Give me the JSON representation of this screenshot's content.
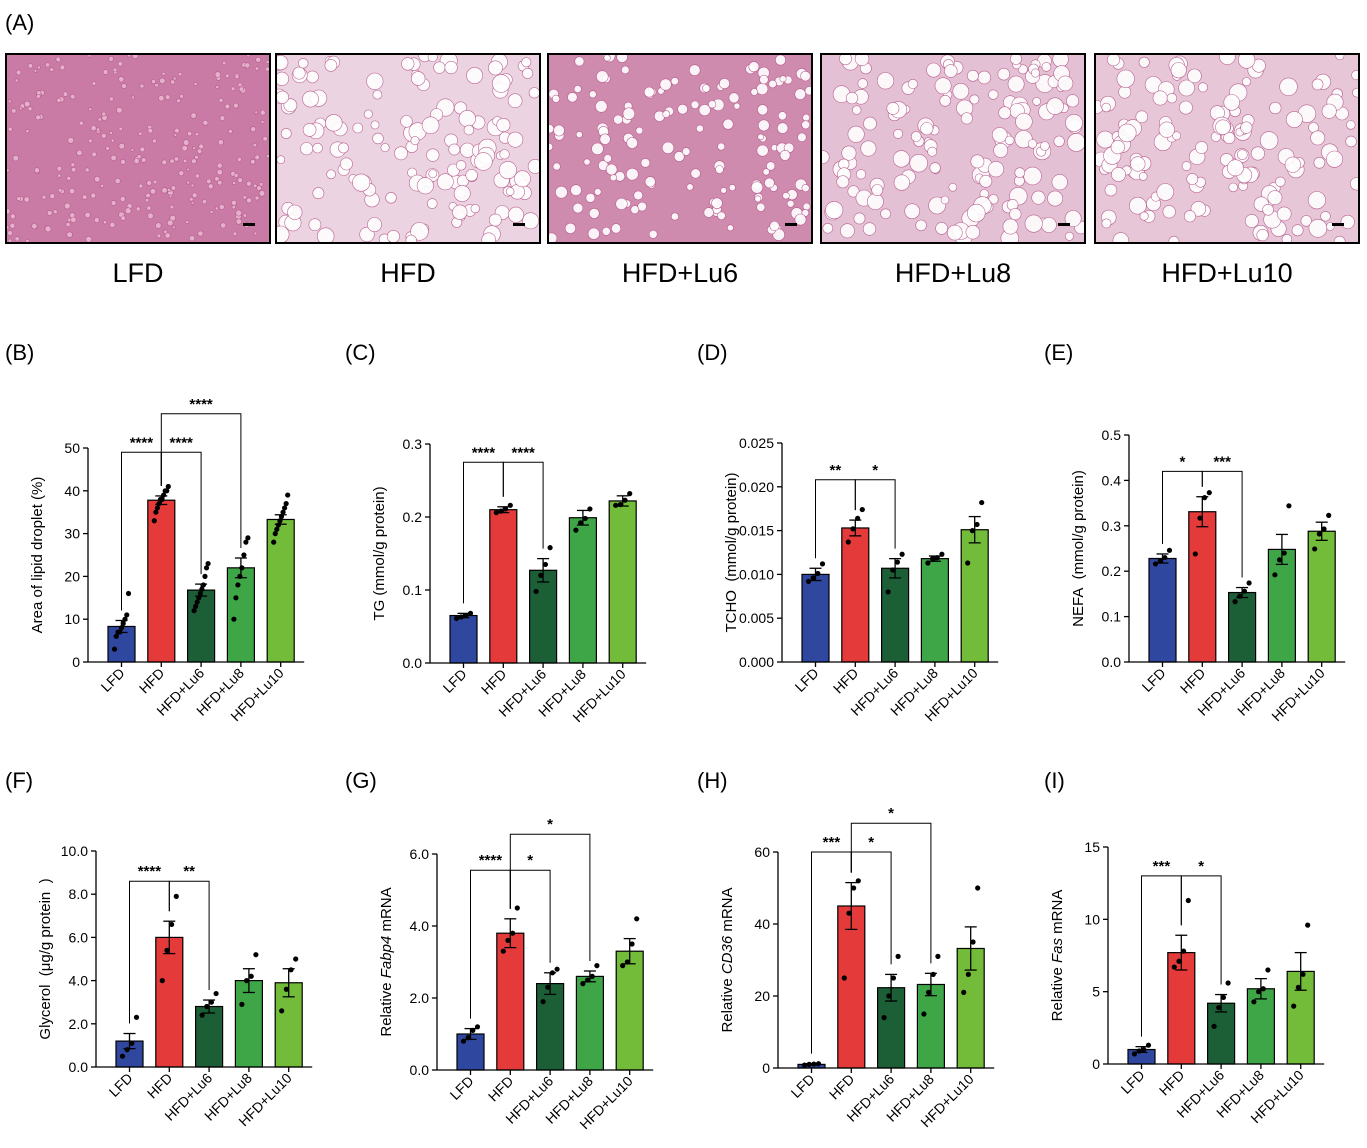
{
  "panel_A": {
    "label": "(A)",
    "images": [
      {
        "group": "LFD",
        "tint": "#c97aa5",
        "cells": "small"
      },
      {
        "group": "HFD",
        "tint": "#ecd3e1",
        "cells": "large"
      },
      {
        "group": "HFD+Lu6",
        "tint": "#cf8bae",
        "cells": "medium"
      },
      {
        "group": "HFD+Lu8",
        "tint": "#e4c0d4",
        "cells": "large"
      },
      {
        "group": "HFD+Lu10",
        "tint": "#e7c6d8",
        "cells": "large"
      }
    ]
  },
  "colors": {
    "LFD": "#3047a0",
    "HFD": "#e53a3a",
    "HFD+Lu6": "#1c5e36",
    "HFD+Lu8": "#3fa648",
    "HFD+Lu10": "#72bc3a"
  },
  "chart_data": [
    {
      "panel": "(B)",
      "type": "bar",
      "categories": [
        "LFD",
        "HFD",
        "HFD+Lu6",
        "HFD+Lu8",
        "HFD+Lu10"
      ],
      "values": [
        8.3,
        37.8,
        16.8,
        22.0,
        33.3
      ],
      "errors": [
        1.4,
        1.0,
        1.4,
        2.3,
        1.1
      ],
      "points": [
        [
          3,
          6,
          7,
          7,
          8,
          9,
          10,
          11,
          16
        ],
        [
          33,
          35,
          36,
          37,
          38,
          38,
          39,
          40,
          40,
          41
        ],
        [
          12,
          13,
          14,
          15,
          16,
          17,
          18,
          20,
          22,
          23
        ],
        [
          10,
          15,
          18,
          20,
          22,
          25,
          28,
          29
        ],
        [
          28,
          30,
          31,
          32,
          33,
          34,
          35,
          36,
          37,
          39
        ]
      ],
      "ylabel": "Area of lipid droplet (%)",
      "ylim": [
        0,
        50
      ],
      "yticks": [
        "0",
        "10",
        "20",
        "30",
        "40",
        "50"
      ],
      "sig": [
        {
          "from": 0,
          "to": 1,
          "label": "****",
          "level": 49
        },
        {
          "from": 1,
          "to": 2,
          "label": "****",
          "level": 49
        },
        {
          "from": 1,
          "to": 3,
          "label": "****",
          "level": 58
        }
      ]
    },
    {
      "panel": "(C)",
      "type": "bar",
      "categories": [
        "LFD",
        "HFD",
        "HFD+Lu6",
        "HFD+Lu8",
        "HFD+Lu10"
      ],
      "values": [
        0.065,
        0.21,
        0.127,
        0.199,
        0.222
      ],
      "errors": [
        0.003,
        0.004,
        0.016,
        0.01,
        0.007
      ],
      "points": [
        [
          0.061,
          0.063,
          0.065,
          0.068
        ],
        [
          0.206,
          0.208,
          0.211,
          0.216
        ],
        [
          0.098,
          0.12,
          0.135,
          0.158
        ],
        [
          0.182,
          0.192,
          0.198,
          0.211
        ],
        [
          0.216,
          0.217,
          0.223,
          0.232
        ]
      ],
      "ylabel": "TG (mmol/g protein)",
      "ylim": [
        0,
        0.3
      ],
      "yticks": [
        "0.0",
        "0.1",
        "0.2",
        "0.3"
      ],
      "sig": [
        {
          "from": 0,
          "to": 1,
          "label": "****",
          "level": 0.275
        },
        {
          "from": 1,
          "to": 2,
          "label": "****",
          "level": 0.275
        }
      ]
    },
    {
      "panel": "(D)",
      "type": "bar",
      "categories": [
        "LFD",
        "HFD",
        "HFD+Lu6",
        "HFD+Lu8",
        "HFD+Lu10"
      ],
      "values": [
        0.01,
        0.0153,
        0.0107,
        0.0118,
        0.0151
      ],
      "errors": [
        0.0007,
        0.0009,
        0.0011,
        0.0003,
        0.0015
      ],
      "points": [
        [
          0.0092,
          0.0096,
          0.0101,
          0.0112
        ],
        [
          0.0137,
          0.0152,
          0.0164,
          0.0174
        ],
        [
          0.008,
          0.0105,
          0.0114,
          0.0123
        ],
        [
          0.0113,
          0.0118,
          0.0119,
          0.0123
        ],
        [
          0.0113,
          0.015,
          0.0157,
          0.0182
        ]
      ],
      "ylabel": "TCHO  (mmol/g protein)",
      "ylim": [
        0,
        0.025
      ],
      "yticks": [
        "0.000",
        "0.005",
        "0.010",
        "0.015",
        "0.020",
        "0.025"
      ],
      "sig": [
        {
          "from": 0,
          "to": 1,
          "label": "**",
          "level": 0.0208
        },
        {
          "from": 1,
          "to": 2,
          "label": "*",
          "level": 0.0208
        }
      ]
    },
    {
      "panel": "(E)",
      "type": "bar",
      "categories": [
        "LFD",
        "HFD",
        "HFD+Lu6",
        "HFD+Lu8",
        "HFD+Lu10"
      ],
      "values": [
        0.228,
        0.331,
        0.153,
        0.248,
        0.288
      ],
      "errors": [
        0.01,
        0.033,
        0.011,
        0.033,
        0.02
      ],
      "points": [
        [
          0.216,
          0.222,
          0.23,
          0.246
        ],
        [
          0.238,
          0.317,
          0.362,
          0.373
        ],
        [
          0.133,
          0.145,
          0.156,
          0.174
        ],
        [
          0.192,
          0.225,
          0.24,
          0.344
        ],
        [
          0.249,
          0.282,
          0.293,
          0.323
        ]
      ],
      "ylabel": "NEFA  (mmol/g protein)",
      "ylim": [
        0,
        0.5
      ],
      "yticks": [
        "0.0",
        "0.1",
        "0.2",
        "0.3",
        "0.4",
        "0.5"
      ],
      "sig": [
        {
          "from": 0,
          "to": 1,
          "label": "*",
          "level": 0.42
        },
        {
          "from": 1,
          "to": 2,
          "label": "***",
          "level": 0.42
        }
      ]
    },
    {
      "panel": "(F)",
      "type": "bar",
      "categories": [
        "LFD",
        "HFD",
        "HFD+Lu6",
        "HFD+Lu8",
        "HFD+Lu10"
      ],
      "values": [
        1.2,
        6.0,
        2.8,
        4.0,
        3.9
      ],
      "errors": [
        0.35,
        0.75,
        0.3,
        0.55,
        0.65
      ],
      "points": [
        [
          0.5,
          0.8,
          1.1,
          2.3
        ],
        [
          4.0,
          5.4,
          6.6,
          7.9
        ],
        [
          2.4,
          2.8,
          3.0,
          3.4
        ],
        [
          2.9,
          4.0,
          4.2,
          5.2
        ],
        [
          2.6,
          3.6,
          4.5,
          5.0
        ]
      ],
      "ylabel": "Glycerol  (μg/g protein  )",
      "ylim": [
        0,
        10
      ],
      "yticks": [
        "0.0",
        "2.0",
        "4.0",
        "6.0",
        "8.0",
        "10.0"
      ],
      "sig": [
        {
          "from": 0,
          "to": 1,
          "label": "****",
          "level": 8.6
        },
        {
          "from": 1,
          "to": 2,
          "label": "**",
          "level": 8.6
        }
      ]
    },
    {
      "panel": "(G)",
      "type": "bar",
      "categories": [
        "LFD",
        "HFD",
        "HFD+Lu6",
        "HFD+Lu8",
        "HFD+Lu10"
      ],
      "values": [
        1.0,
        3.8,
        2.4,
        2.6,
        3.3
      ],
      "errors": [
        0.15,
        0.4,
        0.3,
        0.15,
        0.35
      ],
      "points": [
        [
          0.8,
          0.9,
          1.1,
          1.2
        ],
        [
          3.3,
          3.6,
          3.8,
          4.5
        ],
        [
          1.9,
          2.3,
          2.7,
          2.8
        ],
        [
          2.4,
          2.5,
          2.6,
          2.9
        ],
        [
          2.9,
          3.0,
          3.5,
          4.2
        ]
      ],
      "ylabel": "Relative ",
      "ylabel_italic": "Fabp4",
      "ylabel_after": " mRNA",
      "ylim": [
        0,
        6
      ],
      "yticks": [
        "0.0",
        "2.0",
        "4.0",
        "6.0"
      ],
      "sig": [
        {
          "from": 0,
          "to": 1,
          "label": "****",
          "level": 5.55
        },
        {
          "from": 1,
          "to": 2,
          "label": "*",
          "level": 5.55
        },
        {
          "from": 1,
          "to": 3,
          "label": "*",
          "level": 6.55
        }
      ]
    },
    {
      "panel": "(H)",
      "type": "bar",
      "categories": [
        "LFD",
        "HFD",
        "HFD+Lu6",
        "HFD+Lu8",
        "HFD+Lu10"
      ],
      "values": [
        1.0,
        45.0,
        22.3,
        23.2,
        33.2
      ],
      "errors": [
        0.2,
        6.5,
        3.7,
        3.1,
        6.0
      ],
      "points": [
        [
          0.8,
          1.0,
          1.1,
          1.2
        ],
        [
          25,
          43,
          50,
          52
        ],
        [
          14,
          20,
          25,
          31
        ],
        [
          15,
          21,
          26,
          31
        ],
        [
          21,
          26,
          35,
          50
        ]
      ],
      "ylabel": "Relative ",
      "ylabel_italic": "CD36",
      "ylabel_after": " mRNA",
      "ylim": [
        0,
        60
      ],
      "yticks": [
        "0",
        "20",
        "40",
        "60"
      ],
      "sig": [
        {
          "from": 0,
          "to": 1,
          "label": "***",
          "level": 60
        },
        {
          "from": 1,
          "to": 2,
          "label": "*",
          "level": 60
        },
        {
          "from": 1,
          "to": 3,
          "label": "*",
          "level": 68
        }
      ]
    },
    {
      "panel": "(I)",
      "type": "bar",
      "categories": [
        "LFD",
        "HFD",
        "HFD+Lu6",
        "HFD+Lu8",
        "HFD+Lu10"
      ],
      "values": [
        1.0,
        7.7,
        4.2,
        5.2,
        6.4
      ],
      "errors": [
        0.2,
        1.2,
        0.6,
        0.7,
        1.3
      ],
      "points": [
        [
          0.7,
          0.9,
          1.0,
          1.3
        ],
        [
          6.7,
          7.1,
          7.8,
          11.3
        ],
        [
          2.6,
          3.9,
          4.6,
          5.6
        ],
        [
          4.3,
          5.0,
          5.2,
          6.5
        ],
        [
          4.0,
          5.3,
          6.2,
          9.6
        ]
      ],
      "ylabel": "Relative ",
      "ylabel_italic": "Fas",
      "ylabel_after": " mRNA",
      "ylim": [
        0,
        15
      ],
      "yticks": [
        "0",
        "5",
        "10",
        "15"
      ],
      "sig": [
        {
          "from": 0,
          "to": 1,
          "label": "***",
          "level": 13.0
        },
        {
          "from": 1,
          "to": 2,
          "label": "*",
          "level": 13.0
        }
      ]
    }
  ]
}
